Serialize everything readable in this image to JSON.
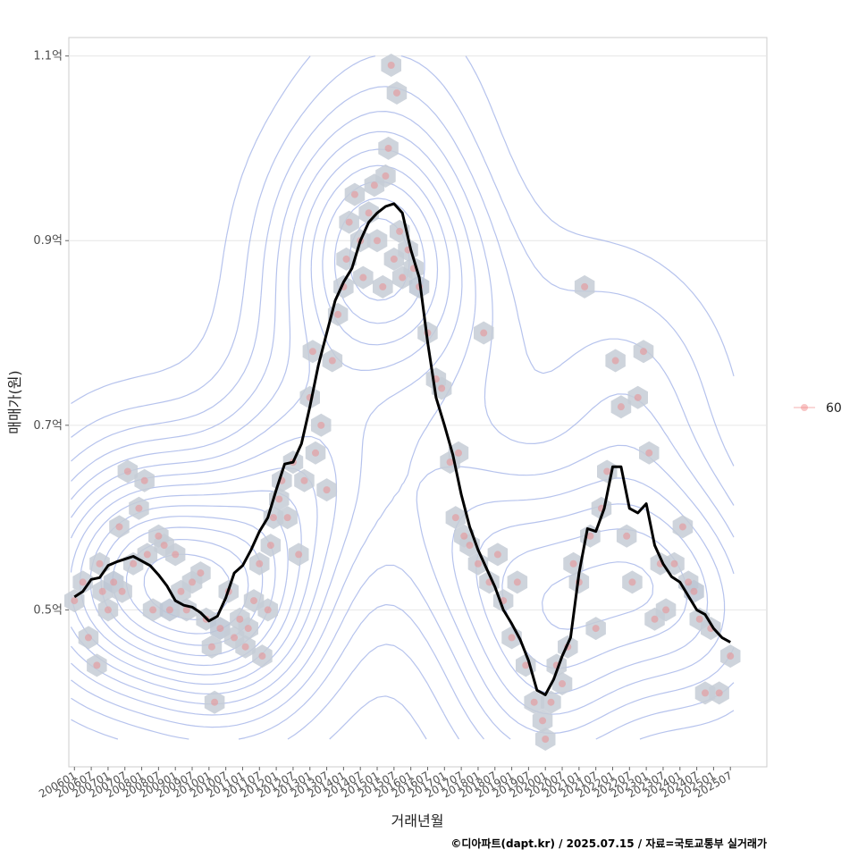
{
  "chart_data": {
    "type": "scatter",
    "xlabel": "거래년월",
    "ylabel": "매매가(원)",
    "caption": "©디아파트(dapt.kr) / 2025.07.15 / 자료=국토교통부 실거래가",
    "legend": {
      "placement": "right",
      "entries": [
        {
          "label": "60",
          "color": "#f08080"
        }
      ]
    },
    "grid": true,
    "ylim": [
      0.33,
      1.12
    ],
    "yticks": [
      {
        "value": 0.5,
        "label": "0.5억"
      },
      {
        "value": 0.7,
        "label": "0.7억"
      },
      {
        "value": 0.9,
        "label": "0.9억"
      },
      {
        "value": 1.1,
        "label": "1.1억"
      }
    ],
    "xlim": [
      "2005-11",
      "2026-08"
    ],
    "xticks": [
      "200601",
      "200607",
      "200701",
      "200707",
      "200801",
      "200807",
      "200901",
      "200907",
      "201001",
      "201007",
      "201101",
      "201107",
      "201201",
      "201207",
      "201301",
      "201307",
      "201401",
      "201407",
      "201501",
      "201507",
      "201601",
      "201607",
      "201701",
      "201707",
      "201801",
      "201807",
      "201901",
      "201907",
      "202001",
      "202007",
      "202101",
      "202107",
      "202201",
      "202207",
      "202301",
      "202307",
      "202401",
      "202407",
      "202501",
      "202507"
    ],
    "series": [
      {
        "name": "60",
        "kind": "points",
        "color": "#f08080",
        "points": [
          [
            "2006-01",
            0.51
          ],
          [
            "2006-04",
            0.53
          ],
          [
            "2006-06",
            0.47
          ],
          [
            "2006-09",
            0.44
          ],
          [
            "2006-10",
            0.55
          ],
          [
            "2006-11",
            0.52
          ],
          [
            "2007-01",
            0.5
          ],
          [
            "2007-03",
            0.53
          ],
          [
            "2007-05",
            0.59
          ],
          [
            "2007-06",
            0.52
          ],
          [
            "2007-08",
            0.65
          ],
          [
            "2007-10",
            0.55
          ],
          [
            "2007-12",
            0.61
          ],
          [
            "2008-02",
            0.64
          ],
          [
            "2008-03",
            0.56
          ],
          [
            "2008-05",
            0.5
          ],
          [
            "2008-07",
            0.58
          ],
          [
            "2008-09",
            0.57
          ],
          [
            "2008-11",
            0.5
          ],
          [
            "2009-01",
            0.56
          ],
          [
            "2009-03",
            0.52
          ],
          [
            "2009-05",
            0.5
          ],
          [
            "2009-07",
            0.53
          ],
          [
            "2009-10",
            0.54
          ],
          [
            "2009-12",
            0.49
          ],
          [
            "2010-02",
            0.46
          ],
          [
            "2010-03",
            0.4
          ],
          [
            "2010-05",
            0.48
          ],
          [
            "2010-08",
            0.52
          ],
          [
            "2010-10",
            0.47
          ],
          [
            "2010-12",
            0.49
          ],
          [
            "2011-02",
            0.46
          ],
          [
            "2011-03",
            0.48
          ],
          [
            "2011-05",
            0.51
          ],
          [
            "2011-07",
            0.55
          ],
          [
            "2011-08",
            0.45
          ],
          [
            "2011-10",
            0.5
          ],
          [
            "2011-11",
            0.57
          ],
          [
            "2011-12",
            0.6
          ],
          [
            "2012-02",
            0.62
          ],
          [
            "2012-03",
            0.64
          ],
          [
            "2012-05",
            0.6
          ],
          [
            "2012-07",
            0.66
          ],
          [
            "2012-09",
            0.56
          ],
          [
            "2012-11",
            0.64
          ],
          [
            "2013-01",
            0.73
          ],
          [
            "2013-02",
            0.78
          ],
          [
            "2013-03",
            0.67
          ],
          [
            "2013-05",
            0.7
          ],
          [
            "2013-07",
            0.63
          ],
          [
            "2013-09",
            0.77
          ],
          [
            "2013-11",
            0.82
          ],
          [
            "2014-01",
            0.85
          ],
          [
            "2014-02",
            0.88
          ],
          [
            "2014-03",
            0.92
          ],
          [
            "2014-05",
            0.95
          ],
          [
            "2014-07",
            0.9
          ],
          [
            "2014-08",
            0.86
          ],
          [
            "2014-10",
            0.93
          ],
          [
            "2014-12",
            0.96
          ],
          [
            "2015-01",
            0.9
          ],
          [
            "2015-03",
            0.85
          ],
          [
            "2015-04",
            0.97
          ],
          [
            "2015-05",
            1.0
          ],
          [
            "2015-06",
            1.09
          ],
          [
            "2015-07",
            0.88
          ],
          [
            "2015-08",
            1.06
          ],
          [
            "2015-09",
            0.91
          ],
          [
            "2015-10",
            0.86
          ],
          [
            "2015-12",
            0.89
          ],
          [
            "2016-02",
            0.87
          ],
          [
            "2016-04",
            0.85
          ],
          [
            "2016-07",
            0.8
          ],
          [
            "2016-10",
            0.75
          ],
          [
            "2016-12",
            0.74
          ],
          [
            "2017-03",
            0.66
          ],
          [
            "2017-05",
            0.6
          ],
          [
            "2017-06",
            0.67
          ],
          [
            "2017-08",
            0.58
          ],
          [
            "2017-10",
            0.57
          ],
          [
            "2018-01",
            0.55
          ],
          [
            "2018-03",
            0.8
          ],
          [
            "2018-05",
            0.53
          ],
          [
            "2018-08",
            0.56
          ],
          [
            "2018-10",
            0.51
          ],
          [
            "2019-01",
            0.47
          ],
          [
            "2019-03",
            0.53
          ],
          [
            "2019-06",
            0.44
          ],
          [
            "2019-09",
            0.4
          ],
          [
            "2019-12",
            0.38
          ],
          [
            "2020-01",
            0.36
          ],
          [
            "2020-03",
            0.4
          ],
          [
            "2020-05",
            0.44
          ],
          [
            "2020-07",
            0.42
          ],
          [
            "2020-09",
            0.46
          ],
          [
            "2020-11",
            0.55
          ],
          [
            "2021-01",
            0.53
          ],
          [
            "2021-03",
            0.85
          ],
          [
            "2021-05",
            0.58
          ],
          [
            "2021-07",
            0.48
          ],
          [
            "2021-09",
            0.61
          ],
          [
            "2021-11",
            0.65
          ],
          [
            "2022-02",
            0.77
          ],
          [
            "2022-04",
            0.72
          ],
          [
            "2022-06",
            0.58
          ],
          [
            "2022-08",
            0.53
          ],
          [
            "2022-10",
            0.73
          ],
          [
            "2022-12",
            0.78
          ],
          [
            "2023-02",
            0.67
          ],
          [
            "2023-04",
            0.49
          ],
          [
            "2023-06",
            0.55
          ],
          [
            "2023-08",
            0.5
          ],
          [
            "2023-11",
            0.55
          ],
          [
            "2024-02",
            0.59
          ],
          [
            "2024-04",
            0.53
          ],
          [
            "2024-06",
            0.52
          ],
          [
            "2024-08",
            0.49
          ],
          [
            "2024-10",
            0.41
          ],
          [
            "2024-12",
            0.48
          ],
          [
            "2025-03",
            0.41
          ],
          [
            "2025-07",
            0.45
          ]
        ]
      },
      {
        "name": "moving average",
        "kind": "line",
        "color": "#000000",
        "points": [
          [
            "2006-01",
            0.514
          ],
          [
            "2006-04",
            0.52
          ],
          [
            "2006-07",
            0.533
          ],
          [
            "2006-10",
            0.535
          ],
          [
            "2007-01",
            0.548
          ],
          [
            "2007-04",
            0.552
          ],
          [
            "2007-07",
            0.555
          ],
          [
            "2007-10",
            0.558
          ],
          [
            "2008-01",
            0.553
          ],
          [
            "2008-04",
            0.548
          ],
          [
            "2008-07",
            0.538
          ],
          [
            "2008-10",
            0.526
          ],
          [
            "2009-01",
            0.51
          ],
          [
            "2009-04",
            0.505
          ],
          [
            "2009-07",
            0.503
          ],
          [
            "2009-10",
            0.497
          ],
          [
            "2010-01",
            0.488
          ],
          [
            "2010-04",
            0.493
          ],
          [
            "2010-07",
            0.513
          ],
          [
            "2010-10",
            0.54
          ],
          [
            "2011-01",
            0.548
          ],
          [
            "2011-04",
            0.565
          ],
          [
            "2011-07",
            0.585
          ],
          [
            "2011-10",
            0.6
          ],
          [
            "2012-01",
            0.63
          ],
          [
            "2012-04",
            0.658
          ],
          [
            "2012-07",
            0.66
          ],
          [
            "2012-10",
            0.68
          ],
          [
            "2013-01",
            0.72
          ],
          [
            "2013-04",
            0.765
          ],
          [
            "2013-07",
            0.8
          ],
          [
            "2013-10",
            0.835
          ],
          [
            "2014-01",
            0.855
          ],
          [
            "2014-04",
            0.87
          ],
          [
            "2014-07",
            0.9
          ],
          [
            "2014-10",
            0.92
          ],
          [
            "2015-01",
            0.93
          ],
          [
            "2015-04",
            0.937
          ],
          [
            "2015-07",
            0.94
          ],
          [
            "2015-10",
            0.93
          ],
          [
            "2016-01",
            0.89
          ],
          [
            "2016-04",
            0.86
          ],
          [
            "2016-07",
            0.79
          ],
          [
            "2016-10",
            0.73
          ],
          [
            "2017-01",
            0.7
          ],
          [
            "2017-04",
            0.668
          ],
          [
            "2017-07",
            0.625
          ],
          [
            "2017-10",
            0.59
          ],
          [
            "2018-01",
            0.565
          ],
          [
            "2018-04",
            0.545
          ],
          [
            "2018-07",
            0.525
          ],
          [
            "2018-10",
            0.5
          ],
          [
            "2019-01",
            0.485
          ],
          [
            "2019-04",
            0.468
          ],
          [
            "2019-07",
            0.445
          ],
          [
            "2019-10",
            0.413
          ],
          [
            "2020-01",
            0.408
          ],
          [
            "2020-04",
            0.425
          ],
          [
            "2020-07",
            0.45
          ],
          [
            "2020-10",
            0.47
          ],
          [
            "2021-01",
            0.54
          ],
          [
            "2021-04",
            0.588
          ],
          [
            "2021-07",
            0.585
          ],
          [
            "2021-10",
            0.61
          ],
          [
            "2022-01",
            0.655
          ],
          [
            "2022-04",
            0.655
          ],
          [
            "2022-07",
            0.61
          ],
          [
            "2022-10",
            0.605
          ],
          [
            "2023-01",
            0.615
          ],
          [
            "2023-04",
            0.57
          ],
          [
            "2023-07",
            0.55
          ],
          [
            "2023-10",
            0.536
          ],
          [
            "2024-01",
            0.53
          ],
          [
            "2024-04",
            0.515
          ],
          [
            "2024-07",
            0.5
          ],
          [
            "2024-10",
            0.495
          ],
          [
            "2025-01",
            0.48
          ],
          [
            "2025-04",
            0.47
          ],
          [
            "2025-07",
            0.465
          ]
        ]
      }
    ]
  }
}
